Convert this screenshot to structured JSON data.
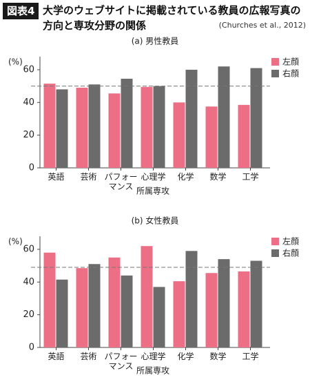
{
  "header": {
    "badge": "図表4",
    "title": "大学のウェブサイトに掲載されている教員の広報写真の方向と専攻分野の関係",
    "source": "(Churches et al., 2012)"
  },
  "chart_data": [
    {
      "type": "bar",
      "title": "(a) 男性教員",
      "x_label": "所属専攻",
      "y_label": "(%)",
      "categories": [
        "英語",
        "芸術",
        "パフォーマンス",
        "心理学",
        "化学",
        "数学",
        "工学"
      ],
      "series": [
        {
          "name": "左顔",
          "color": "#ec6f85",
          "values": [
            51.5,
            49,
            45.5,
            49.5,
            40,
            37.5,
            38.5
          ]
        },
        {
          "name": "右顔",
          "color": "#6b6b6b",
          "values": [
            48,
            51,
            54.5,
            50,
            60,
            62,
            61
          ]
        }
      ],
      "reference_line": 50,
      "ylim": [
        0,
        68
      ],
      "yticks": [
        0,
        20,
        40,
        60
      ],
      "legend": "upper right"
    },
    {
      "type": "bar",
      "title": "(b) 女性教員",
      "x_label": "所属専攻",
      "y_label": "(%)",
      "categories": [
        "英語",
        "芸術",
        "パフォーマンス",
        "心理学",
        "化学",
        "数学",
        "工学"
      ],
      "series": [
        {
          "name": "左顔",
          "color": "#ec6f85",
          "values": [
            58,
            48.5,
            55,
            62,
            40.5,
            45.5,
            46.5
          ]
        },
        {
          "name": "右顔",
          "color": "#6b6b6b",
          "values": [
            41.5,
            51,
            44,
            37,
            59,
            54,
            53
          ]
        }
      ],
      "reference_line": 49,
      "ylim": [
        0,
        68
      ],
      "yticks": [
        0,
        20,
        40,
        60
      ],
      "legend": "upper right"
    }
  ]
}
